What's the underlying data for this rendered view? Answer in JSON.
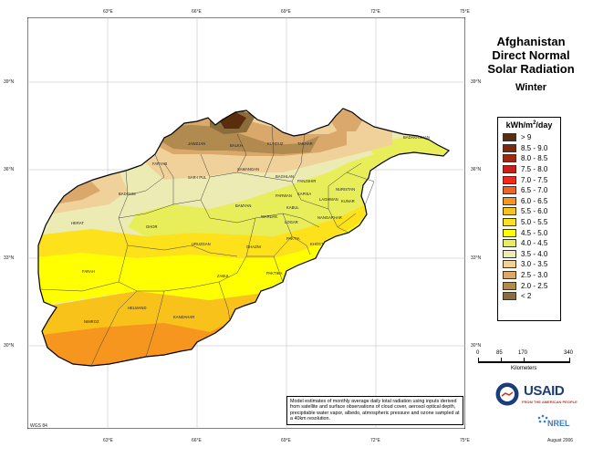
{
  "map": {
    "title_lines": [
      "Afghanistan",
      "Direct Normal",
      "Solar Radiation"
    ],
    "season": "Winter",
    "lon_ticks": [
      "63°E",
      "66°E",
      "69°E",
      "72°E",
      "75°E"
    ],
    "lat_ticks": [
      "39°N",
      "36°N",
      "33°N",
      "30°N"
    ],
    "legend": {
      "title": "kWh/m",
      "title_sup": "2",
      "title_suffix": "/day",
      "classes": [
        {
          "label": "> 9",
          "color": "#5a2d0c"
        },
        {
          "label": "8.5 - 9.0",
          "color": "#7b2a10"
        },
        {
          "label": "8.0 - 8.5",
          "color": "#9c2a14"
        },
        {
          "label": "7.5 - 8.0",
          "color": "#c9201a"
        },
        {
          "label": "7.0 - 7.5",
          "color": "#ee2a1c"
        },
        {
          "label": "6.5 - 7.0",
          "color": "#f4621e"
        },
        {
          "label": "6.0 - 6.5",
          "color": "#f7961e"
        },
        {
          "label": "5.5 - 6.0",
          "color": "#f9c21b"
        },
        {
          "label": "5.0 - 5.5",
          "color": "#fde11a"
        },
        {
          "label": "4.5 - 5.0",
          "color": "#ffff00"
        },
        {
          "label": "4.0 - 4.5",
          "color": "#e8ee5a"
        },
        {
          "label": "3.5 - 4.0",
          "color": "#ecebb3"
        },
        {
          "label": "3.0 - 3.5",
          "color": "#f1d19a"
        },
        {
          "label": "2.5 - 3.0",
          "color": "#d9a86a"
        },
        {
          "label": "2.0 - 2.5",
          "color": "#b08a4e"
        },
        {
          "label": "< 2",
          "color": "#8a6d3a"
        }
      ]
    },
    "scale": {
      "ticks": [
        "0",
        "85",
        "170",
        "340"
      ],
      "unit": "Kilometers"
    },
    "note": "Model estimates of monthly average daily total radiation using inputs derived from satellite and surface observations of cloud cover, aerosol optical depth, precipitable water vapor, albedo, atmospheric pressure and ozone sampled at a 40km resolution.",
    "datum": "WGS 84",
    "date": "August 2006",
    "logos": {
      "usaid": "USAID",
      "usaid_sub": "FROM THE AMERICAN PEOPLE",
      "nrel": "NREL"
    },
    "provinces": [
      "BADAKHSHAN",
      "JAWZJAN",
      "BALKH",
      "KUNDUZ",
      "TAKHAR",
      "FARYAB",
      "SAR-I PUL",
      "SAMANGAN",
      "BAGHLAN",
      "BADGHIS",
      "HERAT",
      "GHOR",
      "BAMYAN",
      "PARWAN",
      "PANJSHIR",
      "NURISTAN",
      "KUNAR",
      "NANGARHAR",
      "LAGHMAN",
      "KAPISA",
      "KABUL",
      "WARDAK",
      "LOGAR",
      "PAKTIA",
      "KHOST",
      "GHAZNI",
      "URUZGAN",
      "ZABUL",
      "PAKTIKA",
      "FARAH",
      "HELMAND",
      "KANDAHAR",
      "NIMROZ"
    ]
  }
}
